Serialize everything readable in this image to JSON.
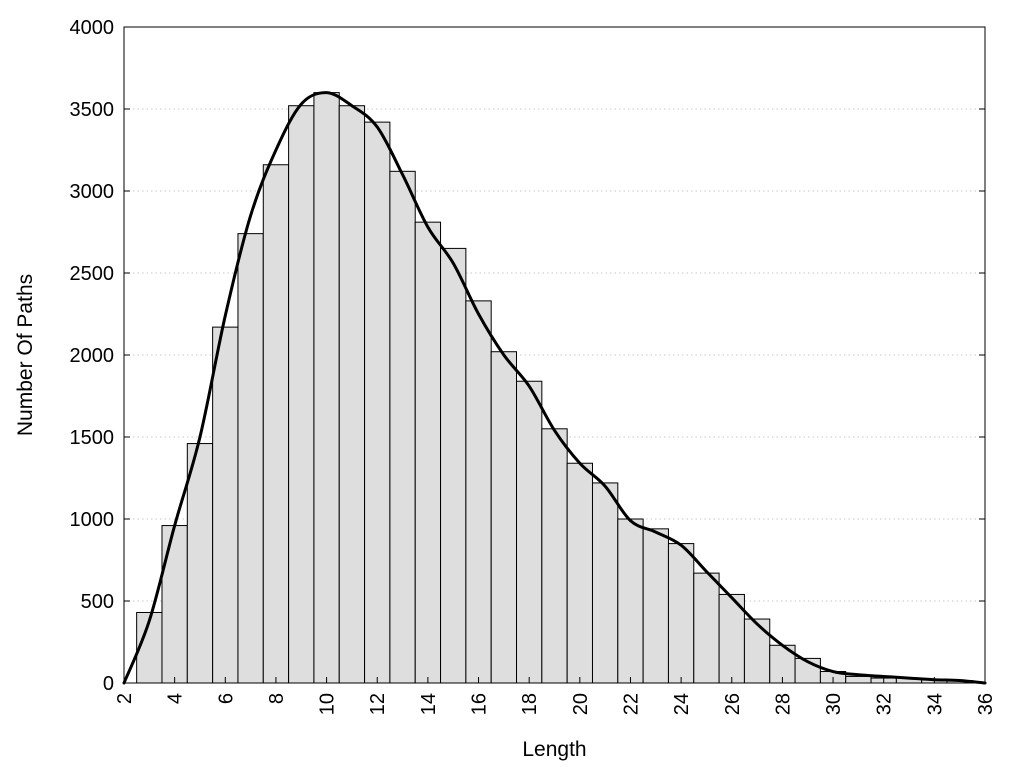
{
  "chart_data": {
    "type": "bar",
    "xlabel": "Length",
    "ylabel": "Number Of Paths",
    "xlim": [
      2,
      36
    ],
    "ylim": [
      0,
      4000
    ],
    "x_ticks": [
      2,
      4,
      6,
      8,
      10,
      12,
      14,
      16,
      18,
      20,
      22,
      24,
      26,
      28,
      30,
      32,
      34,
      36
    ],
    "y_ticks": [
      0,
      500,
      1000,
      1500,
      2000,
      2500,
      3000,
      3500,
      4000
    ],
    "grid": "horizontal dotted",
    "bar_color": "#dedede",
    "bars": {
      "x": [
        3,
        4,
        5,
        6,
        7,
        8,
        9,
        10,
        11,
        12,
        13,
        14,
        15,
        16,
        17,
        18,
        19,
        20,
        21,
        22,
        23,
        24,
        25,
        26,
        27,
        28,
        29,
        30,
        31,
        32,
        33,
        34,
        35
      ],
      "values": [
        430,
        960,
        1460,
        2170,
        2740,
        3160,
        3520,
        3600,
        3520,
        3420,
        3120,
        2810,
        2650,
        2330,
        2020,
        1840,
        1550,
        1340,
        1220,
        1000,
        940,
        850,
        670,
        540,
        390,
        230,
        150,
        70,
        40,
        30,
        30,
        20,
        15
      ]
    },
    "series": [
      {
        "type": "line",
        "x": [
          2,
          3,
          4,
          5,
          6,
          7,
          8,
          9,
          10,
          11,
          12,
          13,
          14,
          15,
          16,
          17,
          18,
          19,
          20,
          21,
          22,
          23,
          24,
          25,
          26,
          27,
          28,
          29,
          30,
          31,
          32,
          33,
          34,
          35,
          36
        ],
        "values": [
          0,
          380,
          960,
          1500,
          2240,
          2850,
          3250,
          3530,
          3600,
          3520,
          3390,
          3100,
          2780,
          2560,
          2250,
          2000,
          1810,
          1540,
          1340,
          1200,
          990,
          920,
          840,
          680,
          520,
          360,
          230,
          130,
          70,
          50,
          40,
          30,
          20,
          15,
          0
        ]
      }
    ]
  }
}
